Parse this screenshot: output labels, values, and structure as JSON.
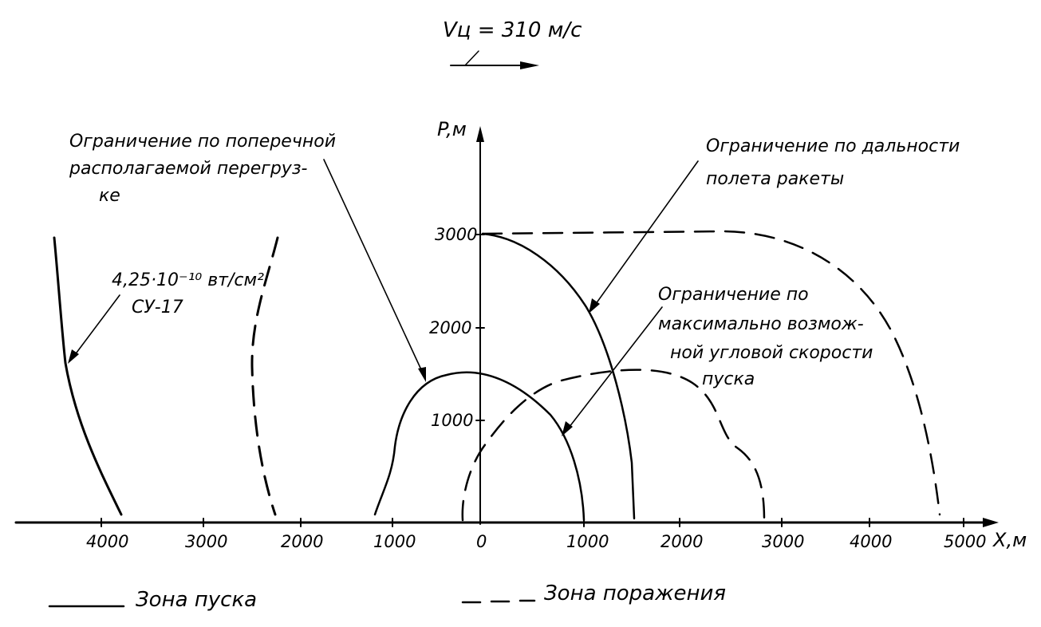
{
  "velocity_label": "Vц = 310 м/c",
  "axes": {
    "y_label": "P,м",
    "x_label": "X,м",
    "y_ticks": [
      "1000",
      "2000",
      "3000"
    ],
    "x_ticks_left": [
      "4000",
      "3000",
      "2000",
      "1000"
    ],
    "x_ticks_right": [
      "0",
      "1000",
      "2000",
      "3000",
      "4000",
      "5000"
    ]
  },
  "annotations": {
    "transverse_overload": [
      "Ограничение по поперечной",
      "располагаемой перегруз-",
      "ке"
    ],
    "flight_range": [
      "Ограничение по дальности",
      "полета  ракеты"
    ],
    "angular_rate": [
      "Ограничение по",
      "максимально возмож-",
      "ной угловой скорости",
      "пуска"
    ],
    "target_irradiance": "4,25·10⁻¹⁰ вт/см²",
    "target_type": "СУ-17"
  },
  "legend": {
    "launch_zone": "Зона пуска",
    "kill_zone": "Зона поражения"
  }
}
